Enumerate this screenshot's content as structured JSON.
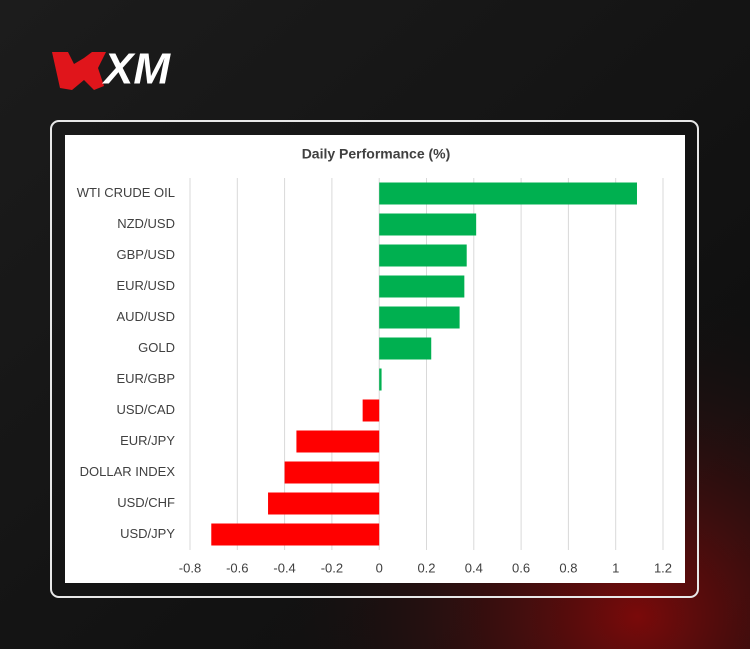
{
  "brand": "XM",
  "chart_data": {
    "type": "hbar",
    "title": "Daily Performance (%)",
    "categories": [
      "WTI CRUDE OIL",
      "NZD/USD",
      "GBP/USD",
      "EUR/USD",
      "AUD/USD",
      "GOLD",
      "EUR/GBP",
      "USD/CAD",
      "EUR/JPY",
      "DOLLAR INDEX",
      "USD/CHF",
      "USD/JPY"
    ],
    "values": [
      1.09,
      0.41,
      0.37,
      0.36,
      0.34,
      0.22,
      0.01,
      -0.07,
      -0.35,
      -0.4,
      -0.47,
      -0.71
    ],
    "positive_color": "#00b050",
    "negative_color": "#ff0000",
    "xlim": [
      -0.8,
      1.2
    ],
    "xticks": [
      -0.8,
      -0.6,
      -0.4,
      -0.2,
      0,
      0.2,
      0.4,
      0.6,
      0.8,
      1,
      1.2
    ],
    "grid": true
  }
}
